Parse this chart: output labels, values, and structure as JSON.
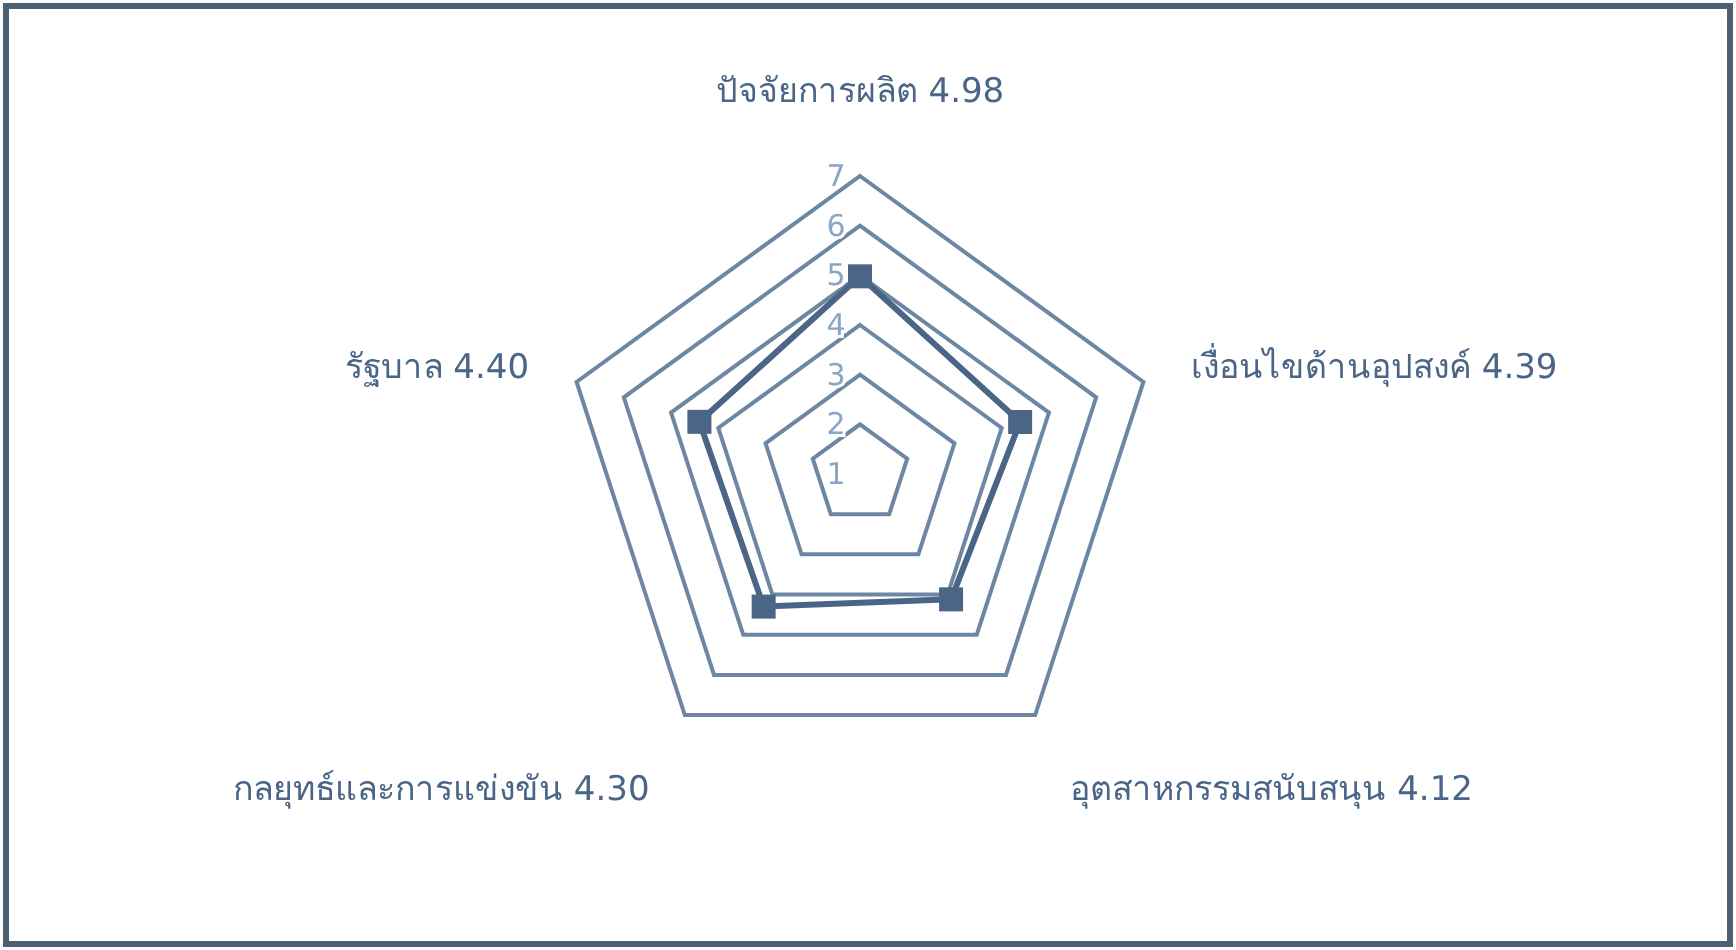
{
  "chart_data": {
    "type": "radar",
    "categories": [
      "ปัจจัยการผลิต  4.98",
      "เงื่อนไขด้านอุปสงค์  4.39",
      "อุตสาหกรรมสนับสนุน 4.12",
      "กลยุทธ์และการแข่งขัน 4.30",
      "รัฐบาล  4.40"
    ],
    "series": [
      {
        "color": "#4a6585",
        "values": [
          4.98,
          4.39,
          4.12,
          4.3,
          4.4
        ]
      }
    ],
    "ylim": [
      1,
      7
    ],
    "yticks": [
      1,
      2,
      3,
      4,
      5,
      6,
      7
    ],
    "marker": "square",
    "line_style": "solid"
  }
}
